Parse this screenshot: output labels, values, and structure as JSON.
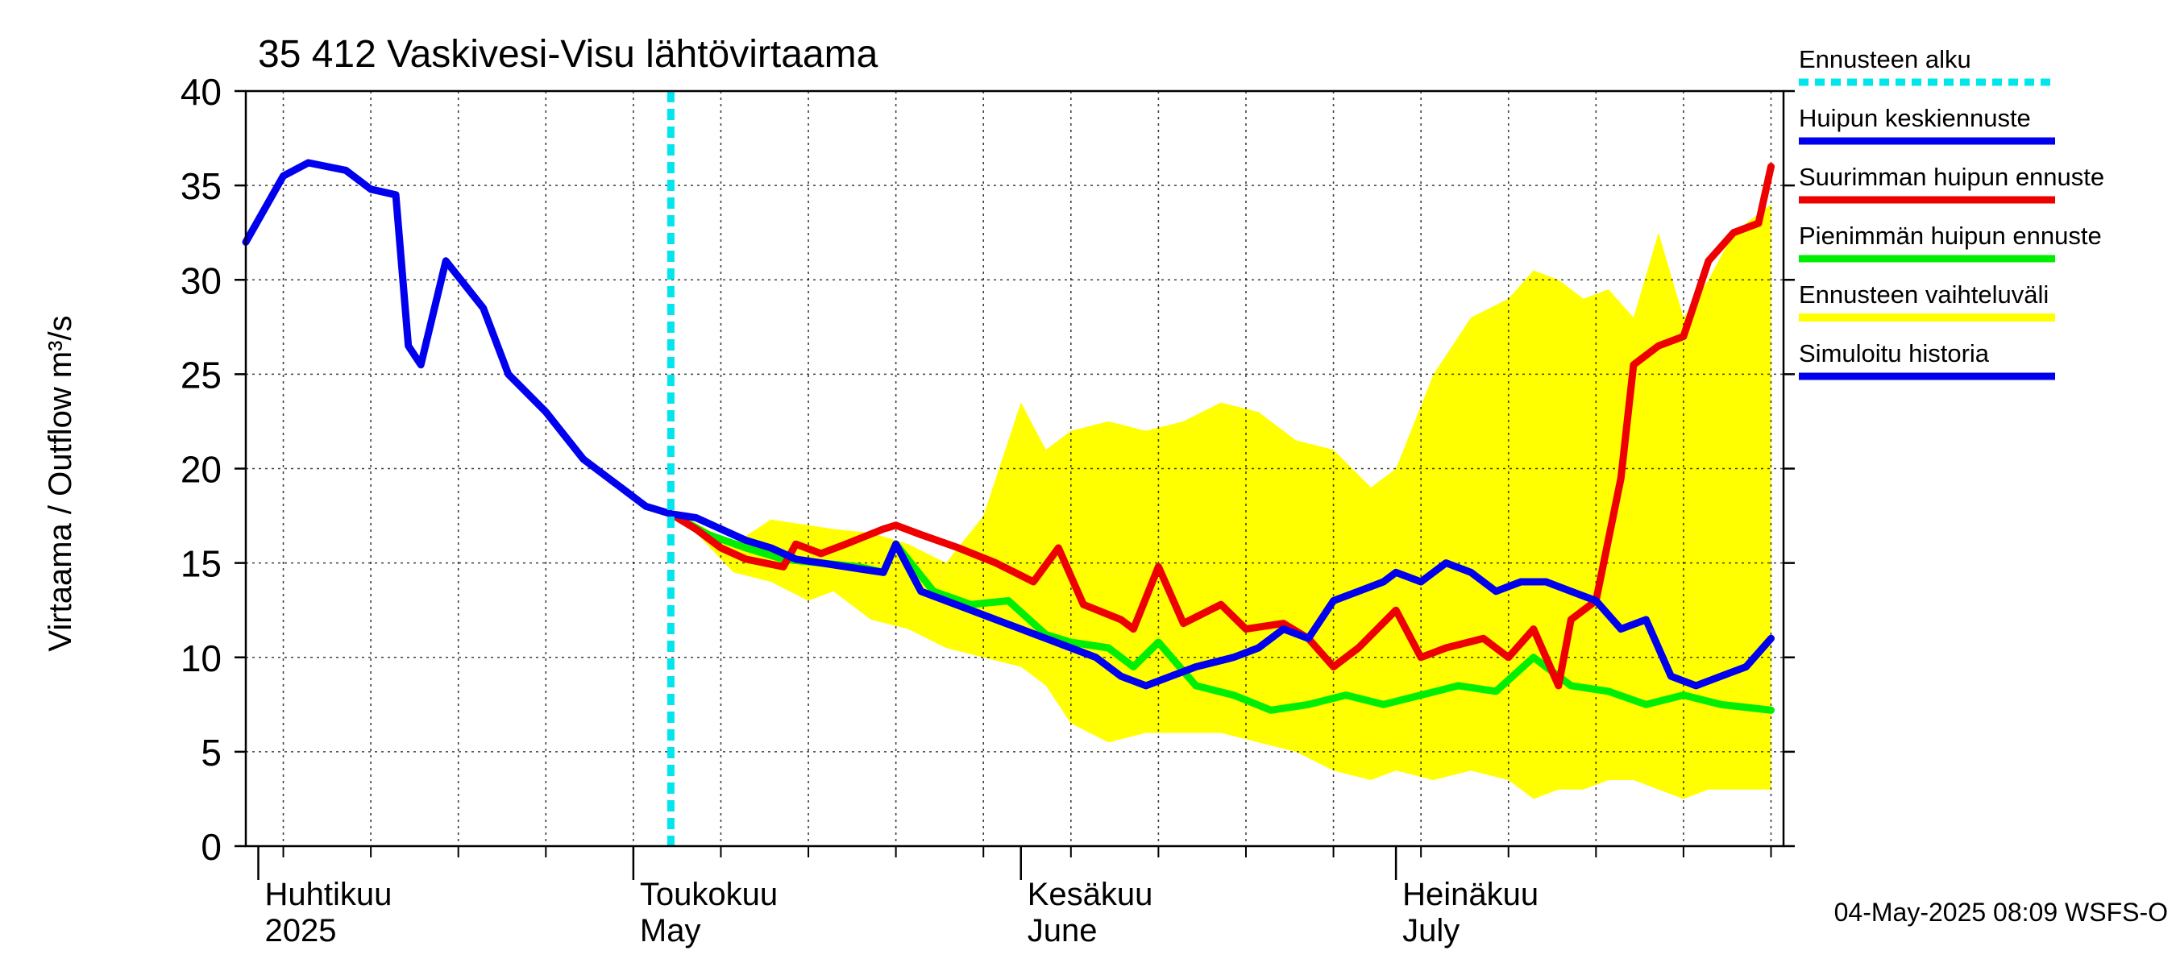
{
  "chart_data": {
    "type": "line",
    "title": "35 412 Vaskivesi-Visu lähtövirtaama",
    "ylabel": "Virtaama / Outflow    m³/s",
    "ylim": [
      0,
      40
    ],
    "yticks": [
      0,
      5,
      10,
      15,
      20,
      25,
      30,
      35,
      40
    ],
    "xlim": [
      "2025-03-31",
      "2025-08-01"
    ],
    "months": [
      {
        "date": "2025-04-01",
        "label1": "Huhtikuu",
        "label2": "2025"
      },
      {
        "date": "2025-05-01",
        "label1": "Toukokuu",
        "label2": "May"
      },
      {
        "date": "2025-06-01",
        "label1": "Kesäkuu",
        "label2": "June"
      },
      {
        "date": "2025-07-01",
        "label1": "Heinäkuu",
        "label2": "July"
      }
    ],
    "grid": true,
    "forecast_start": "2025-05-04",
    "footer": "04-May-2025 08:09 WSFS-O",
    "legend": {
      "placement": "right",
      "items": [
        {
          "label": "Ennusteen alku",
          "color": "#00e5ee",
          "style": "dotted"
        },
        {
          "label": "Huipun keskiennuste",
          "color": "#0000ee",
          "style": "solid"
        },
        {
          "label": "Suurimman huipun ennuste",
          "color": "#ee0000",
          "style": "solid"
        },
        {
          "label": "Pienimmän huipun ennuste",
          "color": "#00ee00",
          "style": "solid"
        },
        {
          "label": "Ennusteen vaihteluväli",
          "color": "#ffff00",
          "style": "band"
        },
        {
          "label": "Simuloitu historia",
          "color": "#0000ee",
          "style": "solid"
        }
      ]
    },
    "series": [
      {
        "name": "Ennusteen vaihteluväli",
        "type": "band",
        "x": [
          "2025-05-05",
          "2025-05-09",
          "2025-05-12",
          "2025-05-15",
          "2025-05-17",
          "2025-05-20",
          "2025-05-23",
          "2025-05-26",
          "2025-05-29",
          "2025-06-01",
          "2025-06-03",
          "2025-06-05",
          "2025-06-08",
          "2025-06-11",
          "2025-06-14",
          "2025-06-17",
          "2025-06-20",
          "2025-06-23",
          "2025-06-26",
          "2025-06-29",
          "2025-07-01",
          "2025-07-04",
          "2025-07-07",
          "2025-07-10",
          "2025-07-12",
          "2025-07-14",
          "2025-07-16",
          "2025-07-18",
          "2025-07-20",
          "2025-07-22",
          "2025-07-24",
          "2025-07-26",
          "2025-07-28",
          "2025-07-31"
        ],
        "upper": [
          17.5,
          16.0,
          17.3,
          17.0,
          16.8,
          16.6,
          16.0,
          15.0,
          17.5,
          23.5,
          21.0,
          22.0,
          22.5,
          22.0,
          22.5,
          23.5,
          23.0,
          21.5,
          21.0,
          19.0,
          20.0,
          25.0,
          28.0,
          29.0,
          30.5,
          30.0,
          29.0,
          29.5,
          28.0,
          32.5,
          28.0,
          30.0,
          32.5,
          34.0
        ],
        "lower": [
          17.3,
          14.5,
          14.0,
          13.0,
          13.5,
          12.0,
          11.5,
          10.5,
          10.0,
          9.5,
          8.5,
          6.5,
          5.5,
          6.0,
          6.0,
          6.0,
          5.5,
          5.0,
          4.0,
          3.5,
          4.0,
          3.5,
          4.0,
          3.5,
          2.5,
          3.0,
          3.0,
          3.5,
          3.5,
          3.0,
          2.5,
          3.0,
          3.0,
          3.0
        ]
      },
      {
        "name": "Pienimmän huipun ennuste",
        "color": "#00ee00",
        "x": [
          "2025-05-04",
          "2025-05-07",
          "2025-05-10",
          "2025-05-13",
          "2025-05-16",
          "2025-05-19",
          "2025-05-21",
          "2025-05-22",
          "2025-05-25",
          "2025-05-28",
          "2025-05-31",
          "2025-06-03",
          "2025-06-05",
          "2025-06-08",
          "2025-06-10",
          "2025-06-12",
          "2025-06-15",
          "2025-06-18",
          "2025-06-21",
          "2025-06-24",
          "2025-06-27",
          "2025-06-30",
          "2025-07-03",
          "2025-07-06",
          "2025-07-09",
          "2025-07-12",
          "2025-07-15",
          "2025-07-18",
          "2025-07-21",
          "2025-07-24",
          "2025-07-27",
          "2025-07-31"
        ],
        "values": [
          17.6,
          16.5,
          15.8,
          15.2,
          15.0,
          14.8,
          14.5,
          16.0,
          13.5,
          12.8,
          13.0,
          11.2,
          10.8,
          10.5,
          9.5,
          10.8,
          8.5,
          8.0,
          7.2,
          7.5,
          8.0,
          7.5,
          8.0,
          8.5,
          8.2,
          10.0,
          8.5,
          8.2,
          7.5,
          8.0,
          7.5,
          7.2
        ]
      },
      {
        "name": "Suurimman huipun ennuste",
        "color": "#ee0000",
        "x": [
          "2025-05-04",
          "2025-05-06",
          "2025-05-08",
          "2025-05-10",
          "2025-05-13",
          "2025-05-14",
          "2025-05-16",
          "2025-05-18",
          "2025-05-21",
          "2025-05-22",
          "2025-05-24",
          "2025-05-27",
          "2025-05-30",
          "2025-06-02",
          "2025-06-04",
          "2025-06-06",
          "2025-06-09",
          "2025-06-10",
          "2025-06-12",
          "2025-06-14",
          "2025-06-17",
          "2025-06-19",
          "2025-06-22",
          "2025-06-24",
          "2025-06-26",
          "2025-06-28",
          "2025-07-01",
          "2025-07-03",
          "2025-07-05",
          "2025-07-08",
          "2025-07-10",
          "2025-07-12",
          "2025-07-14",
          "2025-07-15",
          "2025-07-17",
          "2025-07-19",
          "2025-07-20",
          "2025-07-22",
          "2025-07-24",
          "2025-07-26",
          "2025-07-28",
          "2025-07-30",
          "2025-07-31"
        ],
        "values": [
          17.6,
          16.8,
          15.8,
          15.2,
          14.8,
          16.0,
          15.5,
          16.0,
          16.8,
          17.0,
          16.5,
          15.8,
          15.0,
          14.0,
          15.8,
          12.8,
          12.0,
          11.5,
          14.8,
          11.8,
          12.8,
          11.5,
          11.8,
          11.0,
          9.5,
          10.5,
          12.5,
          10.0,
          10.5,
          11.0,
          10.0,
          11.5,
          8.5,
          12.0,
          13.0,
          19.5,
          25.5,
          26.5,
          27.0,
          31.0,
          32.5,
          33.0,
          36.0
        ]
      },
      {
        "name": "Huipun keskiennuste",
        "color": "#0000ee",
        "x": [
          "2025-05-04",
          "2025-05-06",
          "2025-05-08",
          "2025-05-10",
          "2025-05-12",
          "2025-05-14",
          "2025-05-16",
          "2025-05-18",
          "2025-05-20",
          "2025-05-21",
          "2025-05-22",
          "2025-05-24",
          "2025-05-26",
          "2025-05-28",
          "2025-05-30",
          "2025-06-01",
          "2025-06-03",
          "2025-06-05",
          "2025-06-07",
          "2025-06-09",
          "2025-06-11",
          "2025-06-13",
          "2025-06-15",
          "2025-06-18",
          "2025-06-20",
          "2025-06-22",
          "2025-06-24",
          "2025-06-26",
          "2025-06-28",
          "2025-06-30",
          "2025-07-01",
          "2025-07-03",
          "2025-07-05",
          "2025-07-07",
          "2025-07-09",
          "2025-07-11",
          "2025-07-13",
          "2025-07-15",
          "2025-07-17",
          "2025-07-19",
          "2025-07-21",
          "2025-07-23",
          "2025-07-25",
          "2025-07-27",
          "2025-07-29",
          "2025-07-31"
        ],
        "values": [
          17.6,
          17.4,
          16.8,
          16.2,
          15.8,
          15.2,
          15.0,
          14.8,
          14.6,
          14.5,
          16.0,
          13.5,
          13.0,
          12.5,
          12.0,
          11.5,
          11.0,
          10.5,
          10.0,
          9.0,
          8.5,
          9.0,
          9.5,
          10.0,
          10.5,
          11.5,
          11.0,
          13.0,
          13.5,
          14.0,
          14.5,
          14.0,
          15.0,
          14.5,
          13.5,
          14.0,
          14.0,
          13.5,
          13.0,
          11.5,
          12.0,
          9.0,
          8.5,
          9.0,
          9.5,
          11.0
        ]
      },
      {
        "name": "Simuloitu historia",
        "color": "#0000ee",
        "x": [
          "2025-03-31",
          "2025-04-03",
          "2025-04-05",
          "2025-04-08",
          "2025-04-10",
          "2025-04-12",
          "2025-04-13",
          "2025-04-14",
          "2025-04-16",
          "2025-04-19",
          "2025-04-21",
          "2025-04-24",
          "2025-04-27",
          "2025-04-30",
          "2025-05-02",
          "2025-05-04"
        ],
        "values": [
          32.0,
          35.5,
          36.2,
          35.8,
          34.8,
          34.5,
          26.5,
          25.5,
          31.0,
          28.5,
          25.0,
          23.0,
          20.5,
          19.0,
          18.0,
          17.6
        ]
      }
    ]
  }
}
